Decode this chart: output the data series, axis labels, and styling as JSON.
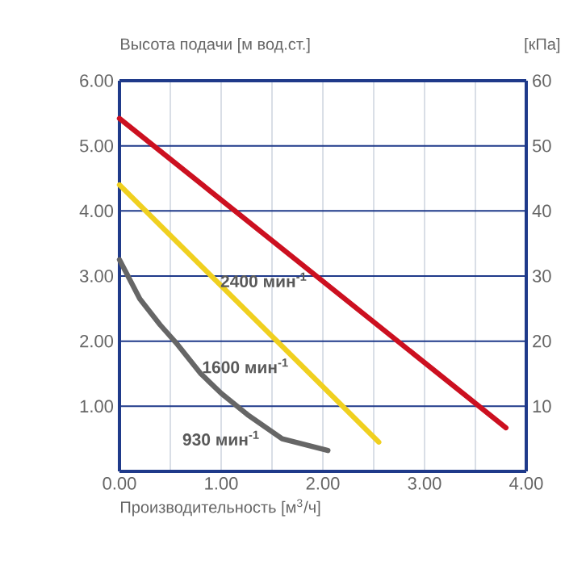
{
  "chart_data": {
    "type": "line",
    "xlabel": "Производительность [м$^{3}$/ч]",
    "ylabel": "Высота подачи [м вод.ст.]",
    "y2label": "[кПа]",
    "series": [
      {
        "color": "#cc1020",
        "x": [
          0,
          3.8
        ],
        "values": [
          5.42,
          0.67
        ]
      },
      {
        "color": "#f0d020",
        "x": [
          0,
          2.55
        ],
        "values": [
          4.4,
          0.45
        ]
      },
      {
        "color": "#666666",
        "x": [
          0,
          0.2,
          0.4,
          0.57,
          0.8,
          1.0,
          1.26,
          1.6,
          2.05
        ],
        "values": [
          3.25,
          2.65,
          2.25,
          1.95,
          1.5,
          1.2,
          0.87,
          0.5,
          0.32
        ]
      }
    ],
    "xlim": [
      0,
      4
    ],
    "ylim": [
      0,
      6
    ],
    "y2lim": [
      0,
      60
    ],
    "xticks": [
      {
        "value": 0,
        "label": "0.00"
      },
      {
        "value": 0.5,
        "label": null
      },
      {
        "value": 1,
        "label": "1.00"
      },
      {
        "value": 1.5,
        "label": null
      },
      {
        "value": 2,
        "label": "2.00"
      },
      {
        "value": 2.5,
        "label": null
      },
      {
        "value": 3,
        "label": "3.00"
      },
      {
        "value": 3.5,
        "label": null
      },
      {
        "value": 4,
        "label": "4.00"
      }
    ],
    "yticks": [
      {
        "value": 1,
        "label": "1.00"
      },
      {
        "value": 2,
        "label": "2.00"
      },
      {
        "value": 3,
        "label": "3.00"
      },
      {
        "value": 4,
        "label": "4.00"
      },
      {
        "value": 5,
        "label": "5.00"
      },
      {
        "value": 6,
        "label": "6.00"
      }
    ],
    "y2ticks": [
      10,
      20,
      30,
      40,
      50,
      60
    ],
    "grid": true,
    "annotations": [
      "2400 мин$^{-1}$",
      "1600 мин$^{-1}$",
      "930 мин$^{-1}$"
    ]
  }
}
